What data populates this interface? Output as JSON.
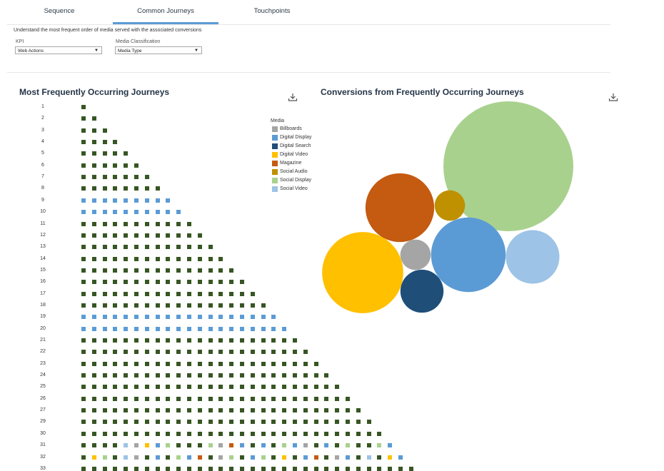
{
  "tabs": [
    {
      "label": "Sequence",
      "active": false
    },
    {
      "label": "Common Journeys",
      "active": true
    },
    {
      "label": "Touchpoints",
      "active": false
    }
  ],
  "description": "Understand the most frequent order of media served with the associated conversions",
  "filters": {
    "kpi": {
      "label": "KPI",
      "value": "Web Actions"
    },
    "media_classification": {
      "label": "Media Classification",
      "value": "Media Type"
    }
  },
  "left_panel": {
    "title": "Most Frequently Occurring Journeys",
    "download_icon": "download-icon"
  },
  "right_panel": {
    "title": "Conversions from Frequently Occurring Journeys",
    "download_icon": "download-icon"
  },
  "legend": {
    "title": "Media",
    "items": [
      {
        "name": "Billboards",
        "color": "#a5a5a5"
      },
      {
        "name": "Digital Display",
        "color": "#5b9bd5"
      },
      {
        "name": "Digital Search",
        "color": "#1f4e79"
      },
      {
        "name": "Digital Video",
        "color": "#ffc000"
      },
      {
        "name": "Magazine",
        "color": "#c55a11"
      },
      {
        "name": "Social Audio",
        "color": "#bf9000"
      },
      {
        "name": "Social Display",
        "color": "#a9d18e"
      },
      {
        "name": "Social Video",
        "color": "#9dc3e6"
      }
    ]
  },
  "chart_data": [
    {
      "type": "heatmap",
      "title": "Most Frequently Occurring Journeys",
      "rows": [
        {
          "label": "1",
          "touchpoints": [
            "#375623"
          ]
        },
        {
          "label": "2",
          "touchpoints": [
            "#375623",
            "#375623"
          ]
        },
        {
          "label": "3",
          "touchpoints": [
            "#375623",
            "#375623",
            "#375623"
          ]
        },
        {
          "label": "4",
          "touchpoints": [
            "#375623",
            "#375623",
            "#375623",
            "#375623"
          ]
        },
        {
          "label": "5",
          "touchpoints": [
            "#375623",
            "#375623",
            "#375623",
            "#375623",
            "#375623"
          ]
        },
        {
          "label": "6",
          "touchpoints": [
            "#375623",
            "#375623",
            "#375623",
            "#375623",
            "#375623",
            "#375623"
          ]
        },
        {
          "label": "7",
          "touchpoints": [
            "#375623",
            "#375623",
            "#375623",
            "#375623",
            "#375623",
            "#375623",
            "#375623"
          ]
        },
        {
          "label": "8",
          "touchpoints": [
            "#375623",
            "#375623",
            "#375623",
            "#375623",
            "#375623",
            "#375623",
            "#375623",
            "#375623"
          ]
        },
        {
          "label": "9",
          "touchpoints": [
            "#5b9bd5",
            "#5b9bd5",
            "#5b9bd5",
            "#5b9bd5",
            "#5b9bd5",
            "#5b9bd5",
            "#5b9bd5",
            "#5b9bd5",
            "#5b9bd5"
          ]
        },
        {
          "label": "10",
          "touchpoints": [
            "#5b9bd5",
            "#5b9bd5",
            "#5b9bd5",
            "#5b9bd5",
            "#5b9bd5",
            "#5b9bd5",
            "#5b9bd5",
            "#5b9bd5",
            "#5b9bd5",
            "#5b9bd5"
          ]
        },
        {
          "label": "11",
          "touchpoints": [
            "#375623",
            "#375623",
            "#375623",
            "#375623",
            "#375623",
            "#375623",
            "#375623",
            "#375623",
            "#375623",
            "#375623",
            "#375623"
          ]
        },
        {
          "label": "12",
          "touchpoints": [
            "#375623",
            "#375623",
            "#375623",
            "#375623",
            "#375623",
            "#375623",
            "#375623",
            "#375623",
            "#375623",
            "#375623",
            "#375623",
            "#375623"
          ]
        },
        {
          "label": "13",
          "touchpoints": [
            "#375623",
            "#375623",
            "#375623",
            "#375623",
            "#375623",
            "#375623",
            "#375623",
            "#375623",
            "#375623",
            "#375623",
            "#375623",
            "#375623",
            "#375623"
          ]
        },
        {
          "label": "14",
          "touchpoints": [
            "#375623",
            "#375623",
            "#375623",
            "#375623",
            "#375623",
            "#375623",
            "#375623",
            "#375623",
            "#375623",
            "#375623",
            "#375623",
            "#375623",
            "#375623",
            "#375623"
          ]
        },
        {
          "label": "15",
          "touchpoints": [
            "#375623",
            "#375623",
            "#375623",
            "#375623",
            "#375623",
            "#375623",
            "#375623",
            "#375623",
            "#375623",
            "#375623",
            "#375623",
            "#375623",
            "#375623",
            "#375623",
            "#375623"
          ]
        },
        {
          "label": "16",
          "touchpoints": [
            "#375623",
            "#375623",
            "#375623",
            "#375623",
            "#375623",
            "#375623",
            "#375623",
            "#375623",
            "#375623",
            "#375623",
            "#375623",
            "#375623",
            "#375623",
            "#375623",
            "#375623",
            "#375623"
          ]
        },
        {
          "label": "17",
          "touchpoints": [
            "#375623",
            "#375623",
            "#375623",
            "#375623",
            "#375623",
            "#375623",
            "#375623",
            "#375623",
            "#375623",
            "#375623",
            "#375623",
            "#375623",
            "#375623",
            "#375623",
            "#375623",
            "#375623",
            "#375623"
          ]
        },
        {
          "label": "18",
          "touchpoints": [
            "#375623",
            "#375623",
            "#375623",
            "#375623",
            "#375623",
            "#375623",
            "#375623",
            "#375623",
            "#375623",
            "#375623",
            "#375623",
            "#375623",
            "#375623",
            "#375623",
            "#375623",
            "#375623",
            "#375623",
            "#375623"
          ]
        },
        {
          "label": "19",
          "touchpoints": [
            "#5b9bd5",
            "#5b9bd5",
            "#5b9bd5",
            "#5b9bd5",
            "#5b9bd5",
            "#5b9bd5",
            "#5b9bd5",
            "#5b9bd5",
            "#5b9bd5",
            "#5b9bd5",
            "#5b9bd5",
            "#5b9bd5",
            "#5b9bd5",
            "#5b9bd5",
            "#5b9bd5",
            "#5b9bd5",
            "#5b9bd5",
            "#5b9bd5",
            "#5b9bd5"
          ]
        },
        {
          "label": "20",
          "touchpoints": [
            "#5b9bd5",
            "#5b9bd5",
            "#5b9bd5",
            "#5b9bd5",
            "#5b9bd5",
            "#5b9bd5",
            "#5b9bd5",
            "#5b9bd5",
            "#5b9bd5",
            "#5b9bd5",
            "#5b9bd5",
            "#5b9bd5",
            "#5b9bd5",
            "#5b9bd5",
            "#5b9bd5",
            "#5b9bd5",
            "#5b9bd5",
            "#5b9bd5",
            "#5b9bd5",
            "#5b9bd5"
          ]
        },
        {
          "label": "21",
          "touchpoints": [
            "#375623",
            "#375623",
            "#375623",
            "#375623",
            "#375623",
            "#375623",
            "#375623",
            "#375623",
            "#375623",
            "#375623",
            "#375623",
            "#375623",
            "#375623",
            "#375623",
            "#375623",
            "#375623",
            "#375623",
            "#375623",
            "#375623",
            "#375623",
            "#375623"
          ]
        },
        {
          "label": "22",
          "touchpoints": [
            "#375623",
            "#375623",
            "#375623",
            "#375623",
            "#375623",
            "#375623",
            "#375623",
            "#375623",
            "#375623",
            "#375623",
            "#375623",
            "#375623",
            "#375623",
            "#375623",
            "#375623",
            "#375623",
            "#375623",
            "#375623",
            "#375623",
            "#375623",
            "#375623",
            "#375623"
          ]
        },
        {
          "label": "23",
          "touchpoints": [
            "#375623",
            "#375623",
            "#375623",
            "#375623",
            "#375623",
            "#375623",
            "#375623",
            "#375623",
            "#375623",
            "#375623",
            "#375623",
            "#375623",
            "#375623",
            "#375623",
            "#375623",
            "#375623",
            "#375623",
            "#375623",
            "#375623",
            "#375623",
            "#375623",
            "#375623",
            "#375623"
          ]
        },
        {
          "label": "24",
          "touchpoints": [
            "#375623",
            "#375623",
            "#375623",
            "#375623",
            "#375623",
            "#375623",
            "#375623",
            "#375623",
            "#375623",
            "#375623",
            "#375623",
            "#375623",
            "#375623",
            "#375623",
            "#375623",
            "#375623",
            "#375623",
            "#375623",
            "#375623",
            "#375623",
            "#375623",
            "#375623",
            "#375623",
            "#375623"
          ]
        },
        {
          "label": "25",
          "touchpoints": [
            "#375623",
            "#375623",
            "#375623",
            "#375623",
            "#375623",
            "#375623",
            "#375623",
            "#375623",
            "#375623",
            "#375623",
            "#375623",
            "#375623",
            "#375623",
            "#375623",
            "#375623",
            "#375623",
            "#375623",
            "#375623",
            "#375623",
            "#375623",
            "#375623",
            "#375623",
            "#375623",
            "#375623",
            "#375623"
          ]
        },
        {
          "label": "26",
          "touchpoints": [
            "#375623",
            "#375623",
            "#375623",
            "#375623",
            "#375623",
            "#375623",
            "#375623",
            "#375623",
            "#375623",
            "#375623",
            "#375623",
            "#375623",
            "#375623",
            "#375623",
            "#375623",
            "#375623",
            "#375623",
            "#375623",
            "#375623",
            "#375623",
            "#375623",
            "#375623",
            "#375623",
            "#375623",
            "#375623",
            "#375623"
          ]
        },
        {
          "label": "27",
          "touchpoints": [
            "#375623",
            "#375623",
            "#375623",
            "#375623",
            "#375623",
            "#375623",
            "#375623",
            "#375623",
            "#375623",
            "#375623",
            "#375623",
            "#375623",
            "#375623",
            "#375623",
            "#375623",
            "#375623",
            "#375623",
            "#375623",
            "#375623",
            "#375623",
            "#375623",
            "#375623",
            "#375623",
            "#375623",
            "#375623",
            "#375623",
            "#375623"
          ]
        },
        {
          "label": "29",
          "touchpoints": [
            "#375623",
            "#375623",
            "#375623",
            "#375623",
            "#375623",
            "#375623",
            "#375623",
            "#375623",
            "#375623",
            "#375623",
            "#375623",
            "#375623",
            "#375623",
            "#375623",
            "#375623",
            "#375623",
            "#375623",
            "#375623",
            "#375623",
            "#375623",
            "#375623",
            "#375623",
            "#375623",
            "#375623",
            "#375623",
            "#375623",
            "#375623",
            "#375623"
          ]
        },
        {
          "label": "30",
          "touchpoints": [
            "#375623",
            "#375623",
            "#375623",
            "#375623",
            "#375623",
            "#375623",
            "#375623",
            "#375623",
            "#375623",
            "#375623",
            "#375623",
            "#375623",
            "#375623",
            "#375623",
            "#375623",
            "#375623",
            "#375623",
            "#375623",
            "#375623",
            "#375623",
            "#375623",
            "#375623",
            "#375623",
            "#375623",
            "#375623",
            "#375623",
            "#375623",
            "#375623",
            "#375623"
          ]
        },
        {
          "label": "31",
          "touchpoints": [
            "#375623",
            "#375623",
            "#375623",
            "#375623",
            "#9dc3e6",
            "#a5a5a5",
            "#ffc000",
            "#5b9bd5",
            "#a9d18e",
            "#375623",
            "#375623",
            "#375623",
            "#a9d18e",
            "#a5a5a5",
            "#c55a11",
            "#5b9bd5",
            "#375623",
            "#5b9bd5",
            "#375623",
            "#a9d18e",
            "#5b9bd5",
            "#a5a5a5",
            "#375623",
            "#5b9bd5",
            "#375623",
            "#a9d18e",
            "#375623",
            "#375623",
            "#a9d18e",
            "#5b9bd5"
          ]
        },
        {
          "label": "32",
          "touchpoints": [
            "#375623",
            "#ffc000",
            "#a9d18e",
            "#375623",
            "#9dc3e6",
            "#a5a5a5",
            "#375623",
            "#5b9bd5",
            "#375623",
            "#a9d18e",
            "#5b9bd5",
            "#c55a11",
            "#375623",
            "#a5a5a5",
            "#a9d18e",
            "#375623",
            "#5b9bd5",
            "#a9d18e",
            "#375623",
            "#ffc000",
            "#375623",
            "#5b9bd5",
            "#c55a11",
            "#375623",
            "#a5a5a5",
            "#5b9bd5",
            "#375623",
            "#9dc3e6",
            "#375623",
            "#ffc000",
            "#5b9bd5"
          ]
        },
        {
          "label": "33",
          "touchpoints": [
            "#375623",
            "#375623",
            "#375623",
            "#375623",
            "#375623",
            "#375623",
            "#375623",
            "#375623",
            "#375623",
            "#375623",
            "#375623",
            "#375623",
            "#375623",
            "#375623",
            "#375623",
            "#375623",
            "#375623",
            "#375623",
            "#375623",
            "#375623",
            "#375623",
            "#375623",
            "#375623",
            "#375623",
            "#375623",
            "#375623",
            "#375623",
            "#375623",
            "#375623",
            "#375623",
            "#375623",
            "#375623"
          ]
        }
      ]
    },
    {
      "type": "bubble",
      "title": "Conversions from Frequently Occurring Journeys",
      "series": [
        {
          "name": "Social Display",
          "value": 100,
          "color": "#a9d18e"
        },
        {
          "name": "Digital Display",
          "value": 33,
          "color": "#5b9bd5"
        },
        {
          "name": "Digital Video",
          "value": 39,
          "color": "#ffc000"
        },
        {
          "name": "Magazine",
          "value": 28,
          "color": "#c55a11"
        },
        {
          "name": "Social Video",
          "value": 17,
          "color": "#9dc3e6"
        },
        {
          "name": "Digital Search",
          "value": 11,
          "color": "#1f4e79"
        },
        {
          "name": "Social Audio",
          "value": 5.5,
          "color": "#bf9000"
        },
        {
          "name": "Billboards",
          "value": 5.5,
          "color": "#a5a5a5"
        }
      ]
    }
  ]
}
